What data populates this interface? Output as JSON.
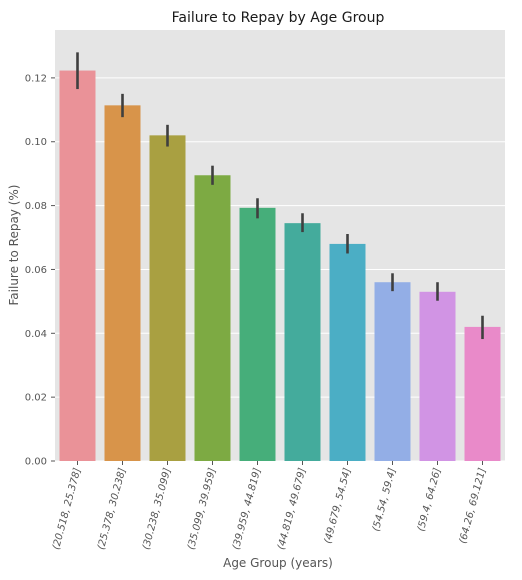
{
  "chart_data": {
    "type": "bar",
    "title": "Failure to Repay by Age Group",
    "xlabel": "Age Group (years)",
    "ylabel": "Failure to Repay (%)",
    "categories": [
      "(20.518, 25.378]",
      "(25.378, 30.238]",
      "(30.238, 35.099]",
      "(35.099, 39.959]",
      "(39.959, 44.819]",
      "(44.819, 49.679]",
      "(49.679, 54.54]",
      "(54.54, 59.4]",
      "(59.4, 64.26]",
      "(64.26, 69.121]"
    ],
    "values": [
      0.1223,
      0.1114,
      0.102,
      0.0895,
      0.0793,
      0.0745,
      0.068,
      0.056,
      0.053,
      0.042
    ],
    "error_low": [
      0.1165,
      0.1077,
      0.0985,
      0.0865,
      0.076,
      0.0717,
      0.065,
      0.0532,
      0.0502,
      0.0382
    ],
    "error_high": [
      0.128,
      0.115,
      0.1053,
      0.0925,
      0.0823,
      0.0776,
      0.0711,
      0.0588,
      0.056,
      0.0455
    ],
    "colors": [
      "#ea9298",
      "#d8944a",
      "#a9a041",
      "#7daa43",
      "#46ae7a",
      "#44ab9c",
      "#4baec5",
      "#93aee6",
      "#d194e4",
      "#e98ac9"
    ],
    "ylim": [
      0,
      0.135
    ],
    "yticks": [
      "0.00",
      "0.02",
      "0.04",
      "0.06",
      "0.08",
      "0.10",
      "0.12"
    ],
    "ytick_values": [
      0,
      0.02,
      0.04,
      0.06,
      0.08,
      0.1,
      0.12
    ],
    "grid": true,
    "xtick_rotation_deg": -75
  }
}
